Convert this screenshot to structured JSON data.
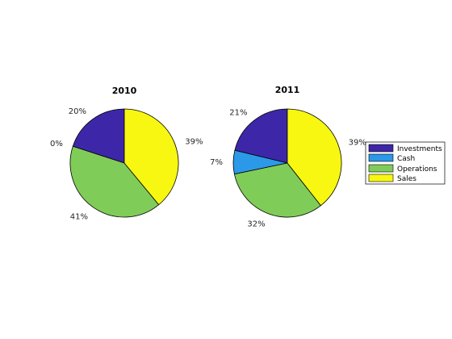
{
  "chart_data": [
    {
      "type": "pie",
      "title": "2010",
      "categories": [
        "Investments",
        "Cash",
        "Operations",
        "Sales"
      ],
      "values": [
        20,
        0,
        41,
        39
      ],
      "labels": [
        "20%",
        "0%",
        "41%",
        "39%"
      ]
    },
    {
      "type": "pie",
      "title": "2011",
      "categories": [
        "Investments",
        "Cash",
        "Operations",
        "Sales"
      ],
      "values": [
        21,
        7,
        32,
        39
      ],
      "labels": [
        "21%",
        "7%",
        "32%",
        "39%"
      ]
    }
  ],
  "legend": {
    "entries": [
      "Investments",
      "Cash",
      "Operations",
      "Sales"
    ],
    "placement": "right"
  },
  "colors": {
    "Investments": "#3d27a8",
    "Cash": "#2c98e8",
    "Operations": "#80cc58",
    "Sales": "#f7f712"
  }
}
